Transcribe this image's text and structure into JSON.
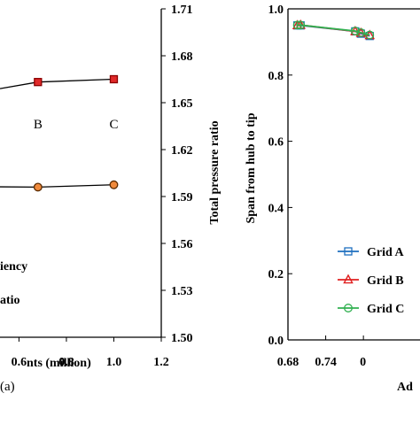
{
  "chart_data": [
    {
      "type": "line",
      "panel_label": "(a)",
      "xlabel": "nts (million)",
      "ylabel_right": "Total pressure ratio",
      "x_ticks": [
        "0.6",
        "0.8",
        "1.0",
        "1.2"
      ],
      "x_range": [
        0.52,
        1.2
      ],
      "y_right_ticks": [
        "1.50",
        "1.53",
        "1.56",
        "1.59",
        "1.62",
        "1.65",
        "1.68",
        "1.71"
      ],
      "y_right_range": [
        1.5,
        1.71
      ],
      "annotations": [
        {
          "text": "B",
          "x": 0.68,
          "y": 1.6365
        },
        {
          "text": "C",
          "x": 1.0,
          "y": 1.6365
        }
      ],
      "series": [
        {
          "color": "#cc0000",
          "marker": "square",
          "x": [
            0.52,
            0.68,
            1.0
          ],
          "y": [
            1.659,
            1.6632,
            1.665
          ]
        },
        {
          "color": "#e07020",
          "marker": "circle",
          "x": [
            0.52,
            0.68,
            1.0
          ],
          "y": [
            1.5962,
            1.596,
            1.5975
          ]
        }
      ],
      "legend": {
        "placement": "bottom-left",
        "entries": [
          "iency",
          "atio"
        ]
      }
    },
    {
      "type": "line",
      "xlabel": "Ad",
      "ylabel": "Span from hub to tip",
      "x_ticks": [
        "0.68",
        "0.74",
        "0"
      ],
      "x_range": [
        0.68,
        0.89
      ],
      "y_ticks": [
        "0.0",
        "0.2",
        "0.4",
        "0.6",
        "0.8",
        "1.0"
      ],
      "y_range": [
        0.0,
        1.0
      ],
      "legend": {
        "placement": "bottom-right",
        "entries": [
          "Grid A",
          "Grid B",
          "Grid C"
        ]
      },
      "series": [
        {
          "name": "Grid A",
          "color": "#1f6fbf",
          "marker": "square",
          "x": [
            0.695,
            0.7,
            0.787,
            0.796,
            0.81
          ],
          "y": [
            0.95,
            0.95,
            0.932,
            0.925,
            0.918
          ]
        },
        {
          "name": "Grid B",
          "color": "#e02020",
          "marker": "triangle",
          "x": [
            0.695,
            0.7,
            0.787,
            0.796,
            0.81
          ],
          "y": [
            0.95,
            0.951,
            0.932,
            0.927,
            0.92
          ]
        },
        {
          "name": "Grid C",
          "color": "#30b050",
          "marker": "circle",
          "x": [
            0.695,
            0.7,
            0.787,
            0.796,
            0.81
          ],
          "y": [
            0.951,
            0.951,
            0.933,
            0.928,
            0.921
          ]
        }
      ]
    }
  ]
}
